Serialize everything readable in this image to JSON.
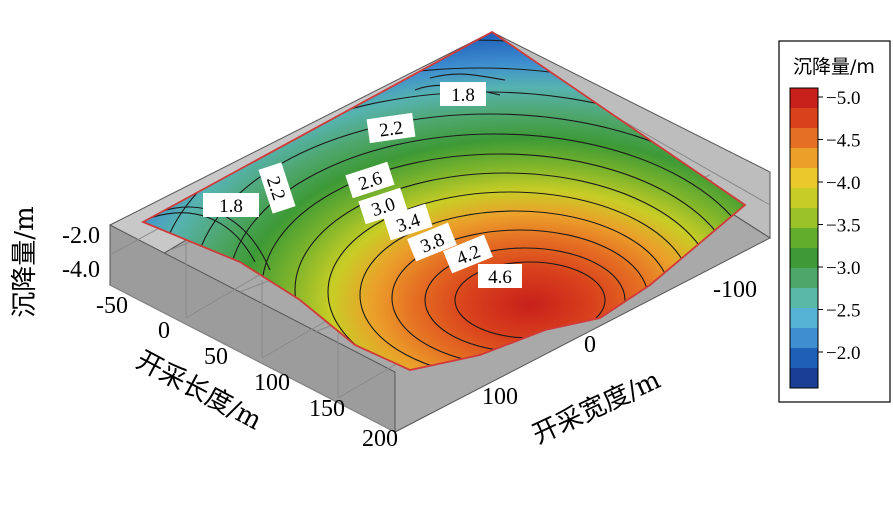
{
  "chart_data": {
    "type": "surface-contour",
    "xlabel": "开采长度/m",
    "ylabel": "开采宽度/m",
    "zlabel": "沉降量/m",
    "x_ticks": [
      "-50",
      "0",
      "50",
      "100",
      "150",
      "200"
    ],
    "y_ticks": [
      "100",
      "0",
      "-100"
    ],
    "z_ticks": [
      "-2.0",
      "-4.0"
    ],
    "contour_levels": [
      "1.8",
      "2.2",
      "2.6",
      "3.0",
      "3.4",
      "3.8",
      "4.2",
      "4.6"
    ],
    "contour_labels_on_plot": [
      "1.8",
      "1.8",
      "2.2",
      "2.2",
      "2.6",
      "3.0",
      "3.4",
      "3.8",
      "4.2",
      "4.6"
    ],
    "colorbar": {
      "title": "沉降量/m",
      "ticks": [
        "-5.0",
        "-4.5",
        "-4.0",
        "-3.5",
        "-3.0",
        "-2.5",
        "-2.0"
      ],
      "colors": [
        "#1a3e96",
        "#1f5fb8",
        "#3e8ed0",
        "#56b3d6",
        "#5ab8a6",
        "#4ea66a",
        "#3d9a36",
        "#63ad2c",
        "#9cc22a",
        "#c8cd26",
        "#ebc92c",
        "#eba02a",
        "#e56f23",
        "#d9411c",
        "#c8201b"
      ]
    },
    "grid": true,
    "legend_position": "right",
    "max_settlement": 5.0
  }
}
